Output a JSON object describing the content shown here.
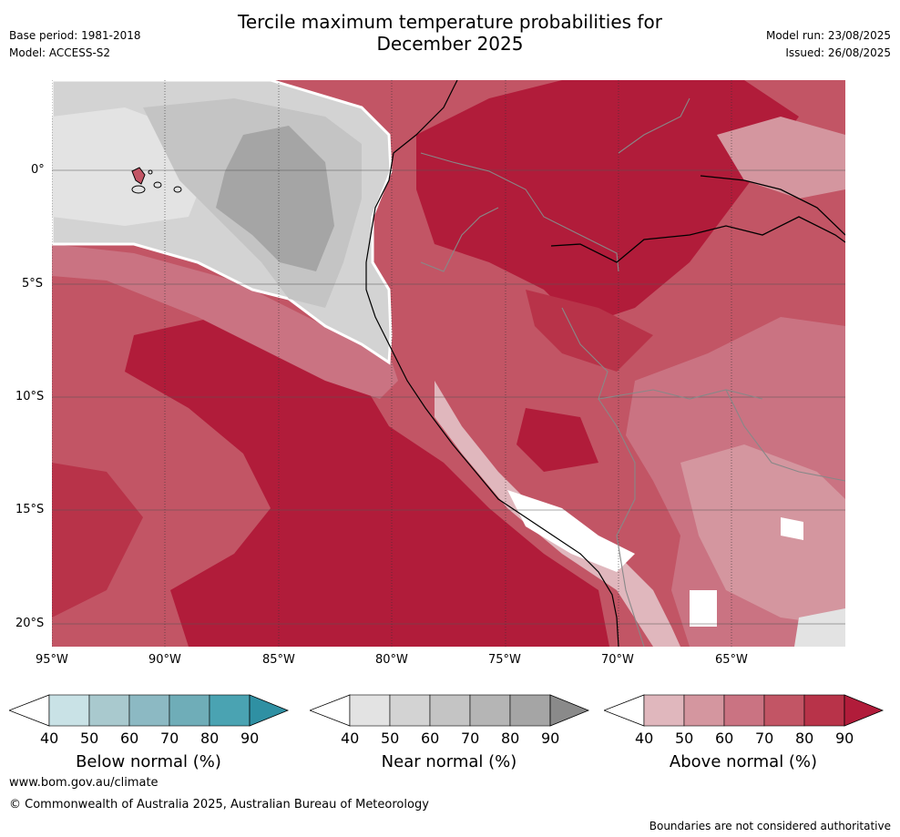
{
  "title_line1": "Tercile maximum temperature probabilities for",
  "title_line2": "December 2025",
  "base_period": "Base period: 1981-2018",
  "model": "Model: ACCESS-S2",
  "model_run": "Model run: 23/08/2025",
  "issued": "Issued: 26/08/2025",
  "map": {
    "lon_labels": [
      "95°W",
      "90°W",
      "85°W",
      "80°W",
      "75°W",
      "70°W",
      "65°W"
    ],
    "lat_labels": [
      "0°",
      "5°S",
      "10°S",
      "15°S",
      "20°S"
    ]
  },
  "legends": [
    {
      "label": "Below normal (%)",
      "ticks": [
        "40",
        "50",
        "60",
        "70",
        "80",
        "90"
      ],
      "colors": [
        "#c9e2e6",
        "#a9c9ce",
        "#8cb9c3",
        "#6fadb8",
        "#4aa3b2",
        "#2f90a3"
      ]
    },
    {
      "label": "Near normal (%)",
      "ticks": [
        "40",
        "50",
        "60",
        "70",
        "80",
        "90"
      ],
      "colors": [
        "#e3e3e3",
        "#d3d3d3",
        "#c4c4c4",
        "#b5b5b5",
        "#a5a5a5",
        "#8a8a8a"
      ]
    },
    {
      "label": "Above normal (%)",
      "ticks": [
        "40",
        "50",
        "60",
        "70",
        "80",
        "90"
      ],
      "colors": [
        "#e0b7bd",
        "#d4969f",
        "#ca7382",
        "#c25565",
        "#b83349",
        "#b11c3a"
      ]
    }
  ],
  "footer_url": "www.bom.gov.au/climate",
  "footer_copyright": "© Commonwealth of Australia 2025, Australian Bureau of Meteorology",
  "footer_disclaimer": "Boundaries are not considered authoritative"
}
